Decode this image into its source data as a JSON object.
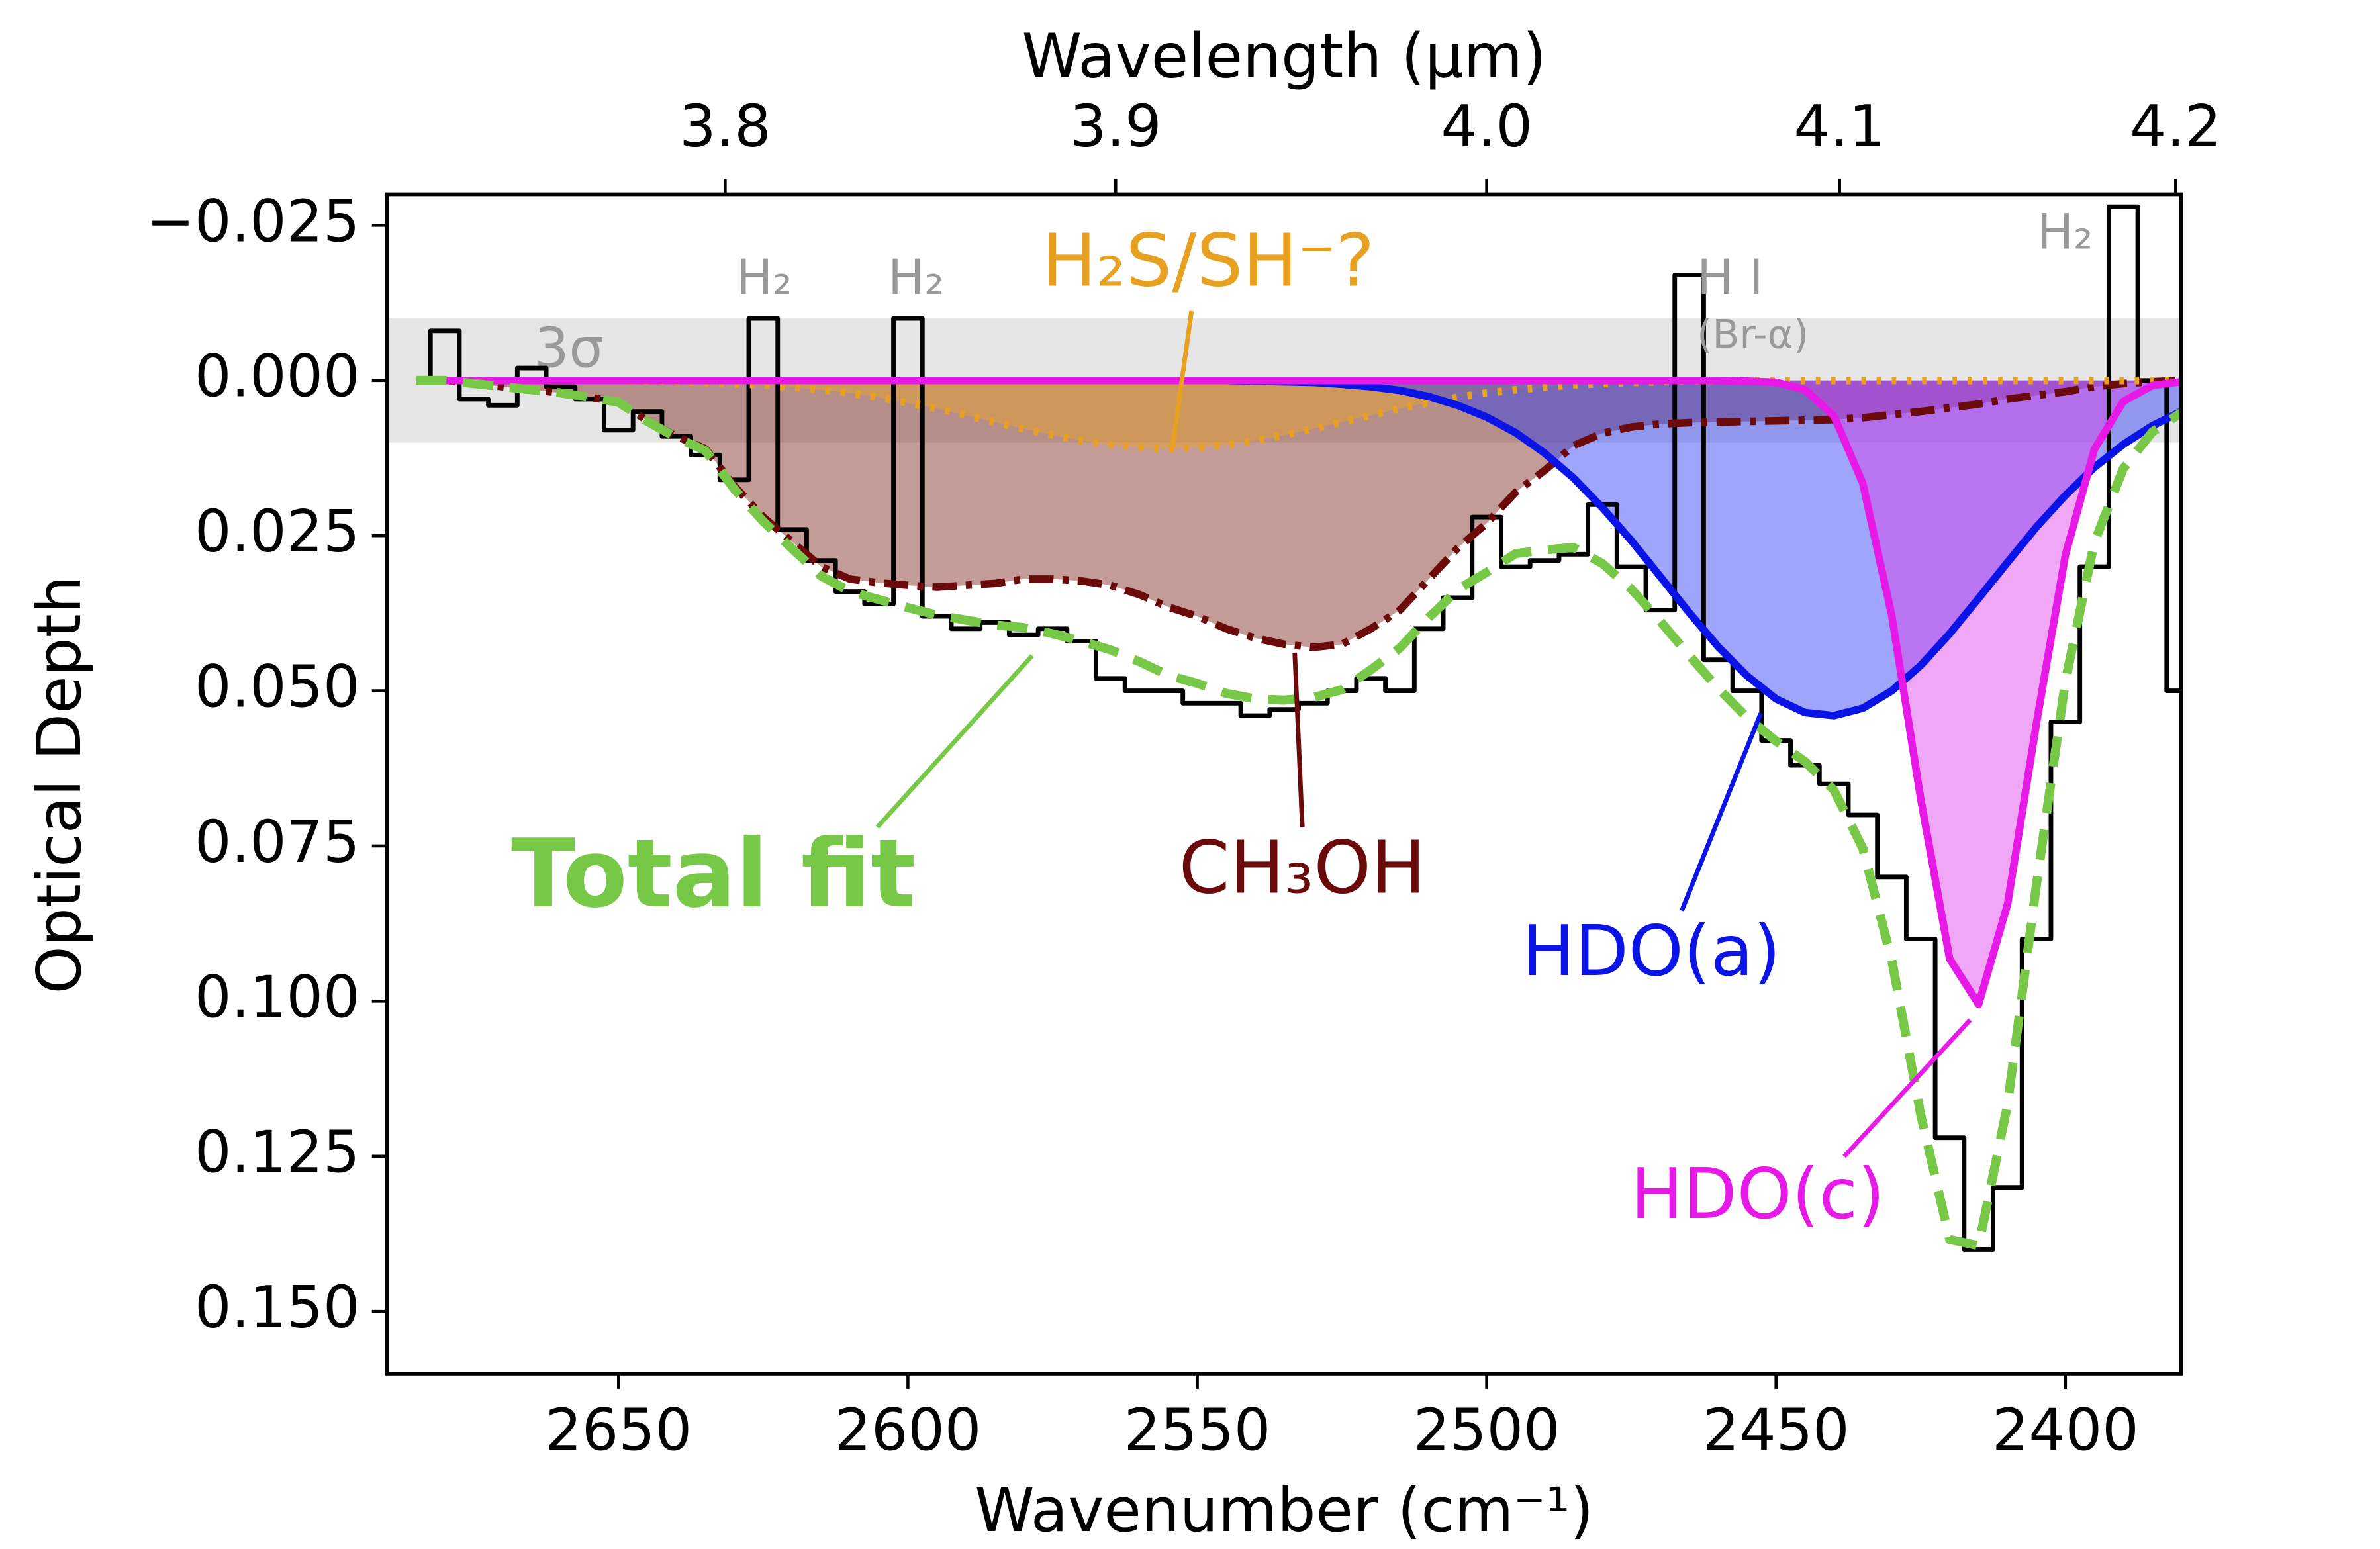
{
  "chart_data": {
    "type": "line",
    "xlabel": "Wavenumber (cm⁻¹)",
    "ylabel": "Optical Depth",
    "x2label": "Wavelength (µm)",
    "x2_scale": "reciprocal",
    "xlim": [
      2690,
      2380
    ],
    "ylim": [
      0.16,
      -0.03
    ],
    "xticks": [
      2650,
      2600,
      2550,
      2500,
      2450,
      2400
    ],
    "x2ticks": [
      3.8,
      3.9,
      {
        "value": 4.0,
        "label": "4.0"
      },
      4.1,
      4.2
    ],
    "yticks": [
      {
        "value": -0.025,
        "label": "−0.025"
      },
      {
        "value": 0,
        "label": "0.000"
      },
      0.025,
      {
        "value": 0.05,
        "label": "0.050"
      },
      0.075,
      {
        "value": 0.1,
        "label": "0.100"
      },
      0.125,
      {
        "value": 0.15,
        "label": "0.150"
      }
    ],
    "band": {
      "label": "3σ",
      "ymin": -0.01,
      "ymax": 0.01,
      "color": "#e6e6e6"
    },
    "annotations": [
      {
        "text": "H₂"
      },
      {
        "text": "H₂"
      },
      {
        "text": "H I"
      },
      {
        "text": "(Br-α)"
      },
      {
        "text": "H₂"
      }
    ],
    "x": [
      2685,
      2680,
      2675,
      2670,
      2665,
      2660,
      2655,
      2650,
      2645,
      2640,
      2635,
      2630,
      2625,
      2620,
      2615,
      2610,
      2605,
      2600,
      2595,
      2590,
      2585,
      2580,
      2575,
      2570,
      2565,
      2560,
      2555,
      2550,
      2545,
      2540,
      2535,
      2530,
      2525,
      2520,
      2515,
      2510,
      2505,
      2500,
      2495,
      2490,
      2485,
      2480,
      2475,
      2470,
      2465,
      2460,
      2455,
      2450,
      2445,
      2440,
      2435,
      2430,
      2425,
      2420,
      2415,
      2410,
      2405,
      2400,
      2395,
      2390,
      2385,
      2380
    ],
    "series": [
      {
        "color": "#000000",
        "linestyle": "steps",
        "values": [
          0,
          -0.008,
          0.003,
          0.004,
          -0.002,
          0.001,
          0.003,
          0.008,
          0.005,
          0.009,
          0.012,
          0.016,
          -0.01,
          0.024,
          0.029,
          0.034,
          0.036,
          -0.01,
          0.038,
          0.04,
          0.039,
          0.041,
          0.04,
          0.042,
          0.048,
          0.05,
          0.05,
          0.052,
          0.052,
          0.054,
          0.053,
          0.052,
          0.05,
          0.048,
          0.05,
          0.04,
          0.035,
          0.022,
          0.03,
          0.029,
          0.028,
          0.02,
          0.03,
          0.037,
          -0.017,
          0.045,
          0.05,
          0.058,
          0.062,
          0.065,
          0.07,
          0.08,
          0.09,
          0.122,
          0.14,
          0.13,
          0.09,
          0.055,
          0.03,
          -0.028,
          0,
          0.05
        ]
      },
      {
        "name": "CH₃OH",
        "color": "#6b0a0a",
        "fill": "rgba(125,35,25,0.45)",
        "linestyle": "dashdot",
        "values": [
          0,
          0,
          0.0005,
          0.001,
          0.0015,
          0.002,
          0.0027,
          0.0035,
          0.0065,
          0.009,
          0.011,
          0.017,
          0.022,
          0.026,
          0.03,
          0.032,
          0.0326,
          0.033,
          0.0333,
          0.033,
          0.0327,
          0.032,
          0.032,
          0.0323,
          0.033,
          0.0345,
          0.0365,
          0.038,
          0.04,
          0.0415,
          0.0425,
          0.043,
          0.0425,
          0.04,
          0.037,
          0.032,
          0.027,
          0.023,
          0.018,
          0.0145,
          0.0105,
          0.0085,
          0.0075,
          0.007,
          0.0068,
          0.0067,
          0.0066,
          0.0065,
          0.0064,
          0.0063,
          0.006,
          0.0055,
          0.005,
          0.0044,
          0.0038,
          0.003,
          0.0024,
          0.0018,
          0.001,
          0.0005,
          0.0002,
          0
        ]
      },
      {
        "name": "H₂S/SH⁻?",
        "color": "#e8a020",
        "fill": "rgba(235,165,40,0.45)",
        "linestyle": "dotted",
        "values": [
          0,
          0,
          0,
          0,
          0,
          0,
          0,
          0,
          0.0001,
          0.0002,
          0.0003,
          0.0005,
          0.0007,
          0.0011,
          0.0015,
          0.002,
          0.0027,
          0.0036,
          0.0045,
          0.0056,
          0.0067,
          0.0078,
          0.0088,
          0.0097,
          0.0104,
          0.0108,
          0.011,
          0.0108,
          0.0104,
          0.0097,
          0.0088,
          0.0078,
          0.0067,
          0.0056,
          0.0045,
          0.0036,
          0.0027,
          0.002,
          0.0015,
          0.0011,
          0.0007,
          0.0005,
          0.0003,
          0.0002,
          0.0001,
          0,
          0,
          0,
          0,
          0,
          0,
          0,
          0,
          0,
          0,
          0,
          0,
          0,
          0,
          0,
          0,
          0
        ]
      },
      {
        "name": "HDO(a)",
        "color": "#0a14e6",
        "fill": "rgba(40,55,245,0.45)",
        "linestyle": "solid",
        "values": [
          0,
          0,
          0,
          0,
          0,
          0,
          0,
          0,
          0,
          0,
          0,
          0,
          0,
          0,
          0,
          0,
          0,
          0,
          0,
          0,
          0,
          0,
          0,
          0,
          0,
          0,
          0,
          0,
          0,
          0.0001,
          0.0002,
          0.0003,
          0.0006,
          0.001,
          0.0016,
          0.0026,
          0.004,
          0.0059,
          0.0084,
          0.0117,
          0.0157,
          0.0205,
          0.0258,
          0.0316,
          0.0374,
          0.0429,
          0.0476,
          0.0513,
          0.0535,
          0.054,
          0.0528,
          0.05,
          0.0459,
          0.0408,
          0.0351,
          0.0293,
          0.0236,
          0.0185,
          0.014,
          0.0103,
          0.0073,
          0.005
        ]
      },
      {
        "name": "HDO(c)",
        "color": "#e619e6",
        "fill": "rgba(220,60,235,0.45)",
        "linestyle": "solid",
        "values": [
          0,
          0,
          0,
          0,
          0,
          0,
          0,
          0,
          0,
          0,
          0,
          0,
          0,
          0,
          0,
          0,
          0,
          0,
          0,
          0,
          0,
          0,
          0,
          0,
          0,
          0,
          0,
          0,
          0,
          0,
          0,
          0,
          0,
          0,
          0,
          0,
          0,
          0,
          0,
          0,
          0,
          0,
          0,
          0,
          0,
          0,
          0.0001,
          0.0003,
          0.0015,
          0.0057,
          0.0166,
          0.0379,
          0.0674,
          0.0932,
          0.1005,
          0.0844,
          0.0552,
          0.0281,
          0.0111,
          0.0034,
          0.0008,
          0.0002
        ]
      },
      {
        "name": "Total fit",
        "color": "#77c846",
        "linestyle": "dashed",
        "values": [
          0,
          0,
          0.0005,
          0.001,
          0.0015,
          0.002,
          0.0027,
          0.0035,
          0.0066,
          0.0092,
          0.0113,
          0.0175,
          0.0227,
          0.0271,
          0.0315,
          0.034,
          0.0353,
          0.0366,
          0.0378,
          0.0386,
          0.0394,
          0.0398,
          0.0408,
          0.042,
          0.0434,
          0.0453,
          0.0475,
          0.0488,
          0.0504,
          0.0513,
          0.0515,
          0.0511,
          0.0498,
          0.0466,
          0.0431,
          0.0382,
          0.0337,
          0.0309,
          0.0279,
          0.0273,
          0.0269,
          0.0295,
          0.0336,
          0.0388,
          0.0443,
          0.0496,
          0.0543,
          0.0581,
          0.0614,
          0.066,
          0.0754,
          0.0934,
          0.1183,
          0.1384,
          0.1394,
          0.1167,
          0.0812,
          0.0484,
          0.0261,
          0.0142,
          0.0083,
          0.0052
        ]
      }
    ]
  }
}
